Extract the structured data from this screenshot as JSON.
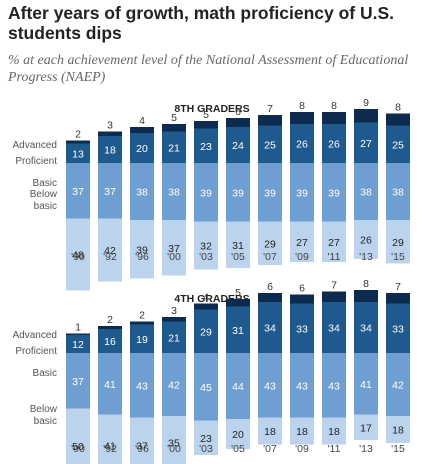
{
  "title": "After years of growth, math proficiency of U.S. students dips",
  "subtitle": "% at each achievement level of the National Assessment of Educational Progress (NAEP)",
  "colors": {
    "advanced": "#0d2a4f",
    "proficient": "#1f5a8e",
    "basic": "#6f9ed0",
    "below_basic": "#bcd3ee",
    "dark_text": "#ffffff",
    "light_text": "#222222"
  },
  "level_names": {
    "advanced": "Advanced",
    "proficient": "Proficient",
    "basic": "Basic",
    "below_basic_line1": "Below",
    "below_basic_line2": "basic"
  },
  "chart_data": [
    {
      "type": "bar",
      "title": "8TH GRADERS",
      "categories": [
        "'90",
        "'92",
        "'96",
        "'00",
        "'03",
        "'05",
        "'07",
        "'09",
        "'11",
        "'13",
        "'15"
      ],
      "series": [
        {
          "name": "Advanced",
          "values": [
            2,
            3,
            4,
            5,
            5,
            6,
            7,
            8,
            8,
            9,
            8
          ]
        },
        {
          "name": "Proficient",
          "values": [
            13,
            18,
            20,
            21,
            23,
            24,
            25,
            26,
            26,
            27,
            25
          ]
        },
        {
          "name": "Basic",
          "values": [
            37,
            37,
            38,
            38,
            39,
            39,
            39,
            39,
            39,
            38,
            38
          ]
        },
        {
          "name": "Below basic",
          "values": [
            48,
            42,
            39,
            37,
            32,
            31,
            29,
            27,
            27,
            26,
            29
          ]
        }
      ]
    },
    {
      "type": "bar",
      "title": "4TH GRADERS",
      "categories": [
        "'90",
        "'92",
        "'96",
        "'00",
        "'03",
        "'05",
        "'07",
        "'09",
        "'11",
        "'13",
        "'15"
      ],
      "series": [
        {
          "name": "Advanced",
          "values": [
            1,
            2,
            2,
            3,
            4,
            5,
            6,
            6,
            7,
            8,
            7
          ]
        },
        {
          "name": "Proficient",
          "values": [
            12,
            16,
            19,
            21,
            29,
            31,
            34,
            33,
            34,
            34,
            33
          ]
        },
        {
          "name": "Basic",
          "values": [
            37,
            41,
            43,
            42,
            45,
            44,
            43,
            43,
            43,
            41,
            42
          ]
        },
        {
          "name": "Below basic",
          "values": [
            50,
            41,
            37,
            35,
            23,
            20,
            18,
            18,
            18,
            17,
            18
          ]
        }
      ]
    }
  ]
}
